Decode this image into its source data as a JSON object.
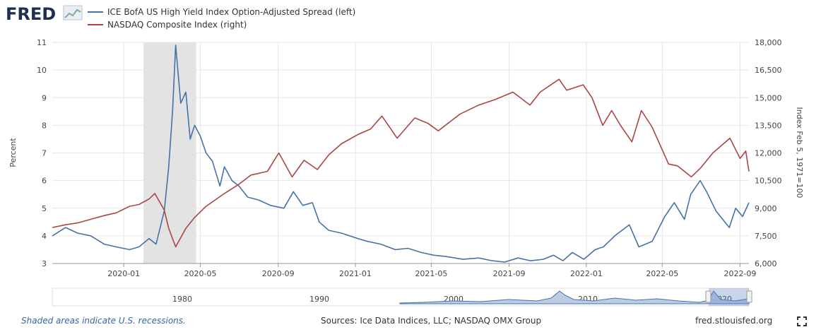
{
  "header": {
    "logo_text": "FRED"
  },
  "legend": [
    {
      "label": "ICE BofA US High Yield Index Option-Adjusted Spread (left)",
      "color": "#4572a7"
    },
    {
      "label": "NASDAQ Composite Index (right)",
      "color": "#aa4643"
    }
  ],
  "footer": {
    "recession_note": "Shaded areas indicate U.S. recessions.",
    "sources": "Sources: Ice Data Indices, LLC; NASDAQ OMX Group",
    "site": "fred.stlouisfed.org"
  },
  "navigator": {
    "labels": [
      "1980",
      "1990",
      "2000",
      "2010",
      "2020"
    ]
  },
  "colors": {
    "series_left": "#4572a7",
    "series_right": "#aa4643",
    "recession": "#e3e3e3",
    "grid": "#e6e6e6",
    "navigator_fill": "#bccde3"
  },
  "chart_data": {
    "type": "line",
    "ylabel": "Percent",
    "ylabel_right": "Index Feb 5, 1971=100",
    "ylim": [
      3,
      11
    ],
    "ylim_right": [
      6000,
      18000
    ],
    "y_ticks": [
      3,
      4,
      5,
      6,
      7,
      8,
      9,
      10,
      11
    ],
    "y_ticks_right": [
      "6,000",
      "7,500",
      "9,000",
      "10,500",
      "12,000",
      "13,500",
      "15,000",
      "16,500",
      "18,000"
    ],
    "x_ticks": [
      "2020-01",
      "2020-05",
      "2020-09",
      "2021-01",
      "2021-05",
      "2021-09",
      "2022-01",
      "2022-05",
      "2022-09"
    ],
    "recession": {
      "start": "2020-02",
      "end": "2020-04"
    },
    "grid": true,
    "legend_position": "top-left",
    "series": [
      {
        "name": "ICE BofA US High Yield Index Option-Adjusted Spread (left)",
        "axis": "left",
        "x": [
          "2019-09-10",
          "2019-10-01",
          "2019-10-20",
          "2019-11-10",
          "2019-12-01",
          "2019-12-20",
          "2020-01-10",
          "2020-01-25",
          "2020-02-10",
          "2020-02-21",
          "2020-03-05",
          "2020-03-12",
          "2020-03-18",
          "2020-03-23",
          "2020-03-31",
          "2020-04-08",
          "2020-04-15",
          "2020-04-22",
          "2020-05-01",
          "2020-05-10",
          "2020-05-20",
          "2020-06-01",
          "2020-06-08",
          "2020-06-20",
          "2020-07-01",
          "2020-07-15",
          "2020-08-01",
          "2020-08-20",
          "2020-09-10",
          "2020-09-25",
          "2020-10-10",
          "2020-10-25",
          "2020-11-05",
          "2020-11-20",
          "2020-12-10",
          "2021-01-05",
          "2021-01-20",
          "2021-02-10",
          "2021-03-05",
          "2021-03-25",
          "2021-04-15",
          "2021-05-05",
          "2021-05-25",
          "2021-06-20",
          "2021-07-15",
          "2021-08-05",
          "2021-08-25",
          "2021-09-15",
          "2021-10-05",
          "2021-10-25",
          "2021-11-10",
          "2021-11-25",
          "2021-12-10",
          "2021-12-28",
          "2022-01-15",
          "2022-01-28",
          "2022-02-15",
          "2022-03-10",
          "2022-03-25",
          "2022-04-15",
          "2022-05-05",
          "2022-05-20",
          "2022-06-05",
          "2022-06-15",
          "2022-06-30",
          "2022-07-10",
          "2022-07-25",
          "2022-08-15",
          "2022-08-25",
          "2022-09-05",
          "2022-09-15"
        ],
        "values": [
          4.0,
          4.3,
          4.1,
          4.0,
          3.7,
          3.6,
          3.5,
          3.6,
          3.9,
          3.7,
          4.9,
          6.5,
          8.5,
          10.9,
          8.8,
          9.2,
          7.5,
          8.0,
          7.6,
          7.0,
          6.7,
          5.8,
          6.5,
          6.0,
          5.8,
          5.4,
          5.3,
          5.1,
          5.0,
          5.6,
          5.1,
          5.2,
          4.5,
          4.2,
          4.1,
          3.9,
          3.8,
          3.7,
          3.5,
          3.55,
          3.4,
          3.3,
          3.25,
          3.15,
          3.2,
          3.1,
          3.05,
          3.2,
          3.1,
          3.15,
          3.3,
          3.1,
          3.4,
          3.15,
          3.5,
          3.6,
          4.0,
          4.4,
          3.6,
          3.8,
          4.7,
          5.2,
          4.6,
          5.5,
          6.0,
          5.6,
          4.9,
          4.3,
          5.0,
          4.7,
          5.2
        ]
      },
      {
        "name": "NASDAQ Composite Index (right)",
        "axis": "right",
        "x": [
          "2019-09-10",
          "2019-10-01",
          "2019-10-20",
          "2019-11-10",
          "2019-12-01",
          "2019-12-20",
          "2020-01-10",
          "2020-01-25",
          "2020-02-10",
          "2020-02-19",
          "2020-03-05",
          "2020-03-12",
          "2020-03-23",
          "2020-04-08",
          "2020-04-22",
          "2020-05-10",
          "2020-06-08",
          "2020-07-01",
          "2020-07-20",
          "2020-08-15",
          "2020-09-02",
          "2020-09-23",
          "2020-10-12",
          "2020-11-02",
          "2020-11-20",
          "2020-12-10",
          "2021-01-05",
          "2021-01-25",
          "2021-02-12",
          "2021-03-08",
          "2021-04-05",
          "2021-04-26",
          "2021-05-12",
          "2021-06-15",
          "2021-07-15",
          "2021-08-10",
          "2021-09-07",
          "2021-10-04",
          "2021-10-20",
          "2021-11-19",
          "2021-12-01",
          "2021-12-27",
          "2022-01-10",
          "2022-01-27",
          "2022-02-10",
          "2022-02-24",
          "2022-03-14",
          "2022-03-29",
          "2022-04-15",
          "2022-05-11",
          "2022-05-25",
          "2022-06-16",
          "2022-07-01",
          "2022-07-20",
          "2022-08-16",
          "2022-09-01",
          "2022-09-10",
          "2022-09-15"
        ],
        "values": [
          7950,
          8100,
          8200,
          8400,
          8600,
          8750,
          9100,
          9200,
          9500,
          9800,
          8900,
          7900,
          6900,
          7900,
          8500,
          9100,
          9800,
          10300,
          10800,
          11000,
          12000,
          10700,
          11600,
          11100,
          11900,
          12500,
          13000,
          13300,
          14000,
          12800,
          13900,
          13600,
          13200,
          14100,
          14600,
          14900,
          15300,
          14600,
          15300,
          16000,
          15400,
          15700,
          15000,
          13500,
          14300,
          13500,
          12600,
          14300,
          13400,
          11400,
          11300,
          10700,
          11200,
          12000,
          12800,
          11700,
          12100,
          11000
        ]
      }
    ]
  }
}
